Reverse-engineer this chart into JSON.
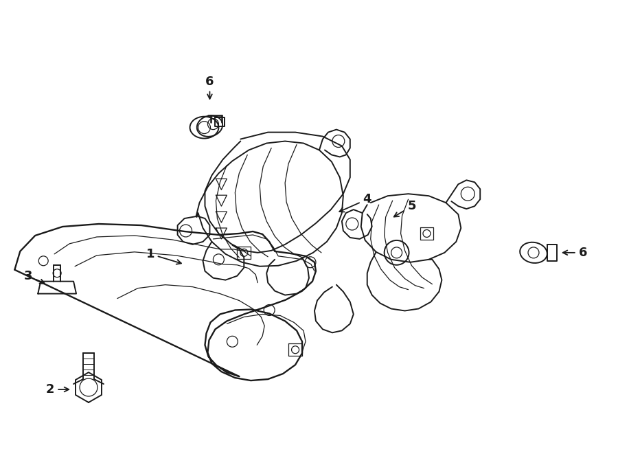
{
  "background_color": "#ffffff",
  "line_color": "#1a1a1a",
  "lw": 1.4,
  "tlw": 0.9,
  "figsize": [
    9.0,
    6.61
  ],
  "dpi": 100,
  "xlim": [
    0,
    900
  ],
  "ylim": [
    0,
    661
  ]
}
